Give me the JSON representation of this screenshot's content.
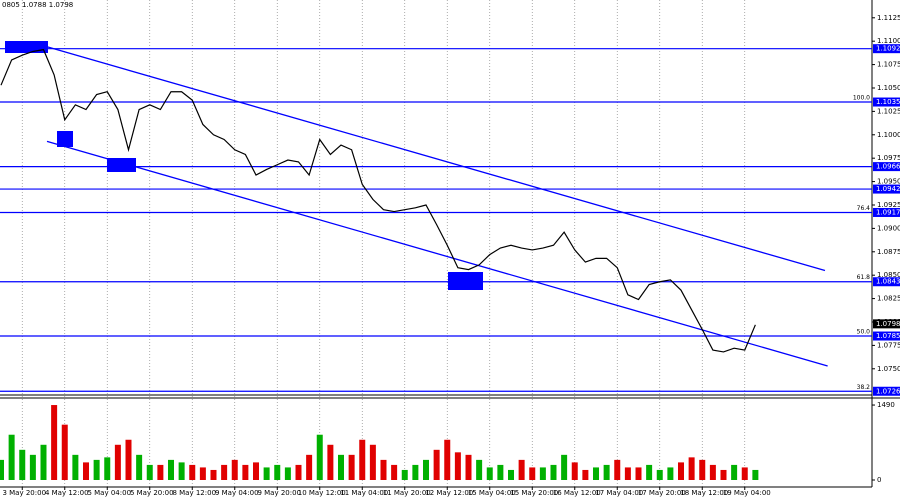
{
  "chart_data": {
    "type": "line",
    "header": "0805 1.0788 1.0798",
    "color": "#000000",
    "categories": [
      null,
      null,
      "3 May 20:00",
      null,
      null,
      null,
      "4 May 12:00",
      null,
      null,
      null,
      "5 May 04:00",
      null,
      null,
      null,
      "5 May 20:00",
      null,
      null,
      null,
      "8 May 12:00",
      null,
      null,
      null,
      "9 May 04:00",
      null,
      null,
      null,
      "9 May 20:00",
      null,
      null,
      null,
      "10 May 12:00",
      null,
      null,
      null,
      "11 May 04:00",
      null,
      null,
      null,
      "11 May 20:00",
      null,
      null,
      null,
      "12 May 12:00",
      null,
      null,
      null,
      "15 May 04:00",
      null,
      null,
      null,
      "15 May 20:00",
      null,
      null,
      null,
      "16 May 12:00",
      null,
      null,
      null,
      "17 May 04:00",
      null,
      null,
      null,
      "17 May 20:00",
      null,
      null,
      null,
      "18 May 12:00",
      null,
      null,
      null,
      "19 May 04:00",
      null
    ],
    "values": [
      1.1053,
      1.108,
      1.1085,
      1.1089,
      1.1091,
      1.1064,
      1.1016,
      1.1032,
      1.1027,
      1.1043,
      1.1046,
      1.1027,
      1.0984,
      1.1027,
      1.1032,
      1.1027,
      1.1046,
      1.1046,
      1.1037,
      1.1011,
      1.1,
      1.0995,
      1.0984,
      1.0979,
      1.0957,
      1.0963,
      1.0968,
      1.0973,
      1.0971,
      1.0957,
      1.0995,
      1.0979,
      1.0989,
      1.0984,
      1.0947,
      1.0931,
      1.092,
      1.0918,
      1.092,
      1.0922,
      1.0925,
      1.0904,
      1.0882,
      1.0858,
      1.0856,
      1.0861,
      1.0872,
      1.0879,
      1.0882,
      1.0879,
      1.0877,
      1.0879,
      1.0882,
      1.0896,
      1.0877,
      1.0864,
      1.0868,
      1.0868,
      1.0858,
      1.0829,
      1.0824,
      1.084,
      1.0843,
      1.0845,
      1.0834,
      1.0813,
      1.0792,
      1.077,
      1.0768,
      1.0772,
      1.077,
      1.0797
    ],
    "ylim": [
      1.0722,
      1.1144
    ],
    "yticks": [
      1.1125,
      {
        "value": 1.11,
        "label": "1.1100"
      },
      1.1075,
      {
        "value": 1.105,
        "label": "1.1050"
      },
      1.1025,
      {
        "value": 1.1,
        "label": "1.1000"
      },
      1.0975,
      {
        "value": 1.095,
        "label": "1.0950"
      },
      1.0925,
      {
        "value": 1.09,
        "label": "1.0900"
      },
      1.0875,
      {
        "value": 1.085,
        "label": "1.0850"
      },
      1.0825,
      {
        "value": 1.08,
        "label": "1.0800"
      },
      1.0775,
      {
        "value": 1.075,
        "label": "1.0750"
      }
    ],
    "levels": [
      {
        "value": 1.1092,
        "color": "#0000ff"
      },
      {
        "value": 1.1035,
        "fib": "100.0",
        "color": "#0000ff"
      },
      {
        "value": 1.0966,
        "color": "#0000ff"
      },
      {
        "value": 1.0942,
        "color": "#0000ff"
      },
      {
        "value": 1.0917,
        "fib": "76.4",
        "color": "#0000ff"
      },
      {
        "value": 1.0843,
        "fib": "61.8",
        "color": "#0000ff"
      },
      {
        "value": 1.0785,
        "fib": "50.0",
        "color": "#0000ff"
      },
      {
        "value": 1.0726,
        "fib": "38.2",
        "color": "#0000ff"
      }
    ],
    "last": 1.0798,
    "trendlines": [
      {
        "x": [
          4.33,
          77.55
        ],
        "y": [
          1.1094,
          1.0855
        ],
        "color": "#0000ff"
      },
      {
        "x": [
          4.33,
          77.8
        ],
        "y": [
          1.0993,
          1.0753
        ],
        "color": "#0000ff"
      }
    ],
    "volume": {
      "values": [
        400,
        900,
        600,
        500,
        700,
        1490,
        1100,
        500,
        350,
        400,
        450,
        700,
        800,
        500,
        300,
        300,
        400,
        350,
        300,
        250,
        200,
        300,
        400,
        300,
        350,
        250,
        300,
        250,
        300,
        500,
        900,
        700,
        500,
        500,
        800,
        700,
        400,
        300,
        200,
        300,
        400,
        600,
        800,
        550,
        500,
        400,
        250,
        300,
        200,
        400,
        250,
        250,
        300,
        500,
        350,
        200,
        250,
        300,
        400,
        250,
        250,
        300,
        200,
        250,
        350,
        450,
        400,
        300,
        200,
        300,
        250,
        200
      ],
      "ylim": [
        0,
        1630
      ],
      "yticks": [
        0,
        1490
      ],
      "up_color": "#00b000",
      "down_color": "#e00000"
    }
  }
}
